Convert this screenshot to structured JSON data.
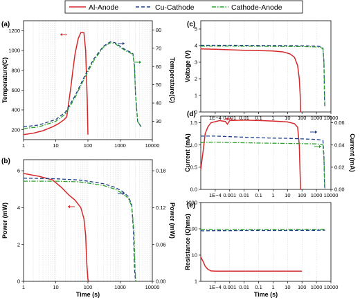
{
  "legend": {
    "entries": [
      {
        "label": "Al-Anode",
        "color": "#d62728",
        "dash": "solid"
      },
      {
        "label": "Cu-Cathode",
        "color": "#1f3c88",
        "dash": "dashed"
      },
      {
        "label": "Cathode-Anode",
        "color": "#2ca02c",
        "dash": "dashdot"
      }
    ]
  },
  "colors": {
    "al": "#d62728",
    "cu": "#1f3c88",
    "ca": "#2ca02c"
  },
  "chart_data": [
    {
      "id": "a",
      "type": "line",
      "panel_label": "(a)",
      "xscale": "log",
      "xlim": [
        1,
        10000
      ],
      "xticks": [
        1,
        10,
        100,
        1000,
        10000
      ],
      "xtick_labels": [
        "1",
        "10",
        "100",
        "1000",
        "10000"
      ],
      "xlabel": "",
      "ylabel": "Temperature(C)",
      "ylim": [
        100,
        1300
      ],
      "yticks": [
        200,
        400,
        600,
        800,
        1000,
        1200
      ],
      "ytick_labels": [
        "200",
        "400",
        "600",
        "800",
        "1000",
        "1200"
      ],
      "y2label": "Temperature(C)",
      "y2lim": [
        20,
        85
      ],
      "y2ticks": [
        30,
        40,
        50,
        60,
        70,
        80
      ],
      "y2tick_labels": [
        "30",
        "40",
        "50",
        "60",
        "70",
        "80"
      ],
      "grid": "vertical-minor",
      "legend": "top (shared)",
      "series": [
        {
          "name": "Al-Anode",
          "axis": "left",
          "x": [
            1,
            2,
            4,
            8,
            12,
            18,
            22,
            26,
            30,
            35,
            40,
            50,
            60,
            75,
            85,
            95,
            100
          ],
          "y": [
            150,
            165,
            190,
            230,
            260,
            300,
            330,
            500,
            650,
            830,
            970,
            1120,
            1180,
            1180,
            1000,
            500,
            150
          ]
        },
        {
          "name": "Cu-Cathode",
          "axis": "right",
          "x": [
            1,
            3,
            10,
            20,
            40,
            80,
            150,
            300,
            500,
            700,
            1000,
            1500,
            2000,
            2500,
            2800,
            3000,
            3500,
            4500
          ],
          "y": [
            27,
            28,
            31,
            35,
            44,
            55,
            64,
            71,
            73.5,
            73,
            71,
            69,
            68,
            67,
            60,
            45,
            30,
            27
          ]
        },
        {
          "name": "Cathode-Anode",
          "axis": "right",
          "x": [
            1,
            3,
            10,
            20,
            40,
            80,
            150,
            300,
            500,
            700,
            1000,
            1500,
            2000,
            2500,
            2800,
            3000,
            3500,
            4500
          ],
          "y": [
            26,
            27,
            30,
            34,
            43,
            54,
            63,
            70.5,
            73,
            72.5,
            70.5,
            68.5,
            67.5,
            66.5,
            60,
            45,
            30,
            27
          ]
        }
      ]
    },
    {
      "id": "b",
      "type": "line",
      "panel_label": "(b)",
      "xscale": "log",
      "xlim": [
        1,
        10000
      ],
      "xticks": [
        1,
        10,
        100,
        1000,
        10000
      ],
      "xtick_labels": [
        "1",
        "10",
        "100",
        "1000",
        "10000"
      ],
      "xlabel": "Time (s)",
      "ylabel": "Power (mW)",
      "ylim": [
        0,
        6.6
      ],
      "yticks": [
        0,
        2,
        4,
        6
      ],
      "ytick_labels": [
        "0",
        "2",
        "4",
        "6"
      ],
      "y2label": "Power (mW)",
      "y2lim": [
        0,
        0.198
      ],
      "y2ticks": [
        0,
        0.06,
        0.12,
        0.18
      ],
      "y2tick_labels": [
        "0.00",
        "0.06",
        "0.12",
        "0.18"
      ],
      "grid": "vertical-minor",
      "legend": "top (shared)",
      "series": [
        {
          "name": "Al-Anode",
          "axis": "left",
          "x": [
            1,
            3,
            8,
            15,
            25,
            40,
            60,
            75,
            85,
            92,
            100,
            105
          ],
          "y": [
            5.85,
            5.7,
            5.5,
            5.1,
            4.7,
            4.4,
            4.0,
            3.4,
            2.5,
            1.0,
            0.1,
            0.0
          ]
        },
        {
          "name": "Cu-Cathode",
          "axis": "right",
          "x": [
            1,
            10,
            50,
            100,
            300,
            700,
            1200,
            1800,
            2300,
            2600,
            2800,
            3000
          ],
          "y": [
            0.168,
            0.167,
            0.165,
            0.163,
            0.159,
            0.153,
            0.146,
            0.138,
            0.125,
            0.08,
            0.02,
            0.0
          ]
        },
        {
          "name": "Cathode-Anode",
          "axis": "right",
          "x": [
            1,
            10,
            50,
            100,
            300,
            700,
            1200,
            1800,
            2300,
            2700,
            2900,
            3100
          ],
          "y": [
            0.163,
            0.163,
            0.162,
            0.16,
            0.156,
            0.15,
            0.143,
            0.135,
            0.122,
            0.08,
            0.02,
            0.0
          ]
        }
      ]
    },
    {
      "id": "c",
      "type": "line",
      "panel_label": "(c)",
      "xscale": "log",
      "xlim": [
        1e-05,
        10000
      ],
      "xticks": [
        0.0001,
        0.001,
        0.01,
        0.1,
        1,
        10,
        100,
        1000,
        10000
      ],
      "xtick_labels": [
        "1E−4",
        "0.001",
        "0.01",
        "0.1",
        "1",
        "10",
        "100",
        "1000",
        "10000"
      ],
      "xlabel": "",
      "ylabel": "Voltage (V)",
      "ylim": [
        0,
        5.5
      ],
      "yticks": [
        0,
        1,
        2,
        3,
        4,
        5
      ],
      "ytick_labels": [
        "0",
        "1",
        "2",
        "3",
        "4",
        "5"
      ],
      "grid": "vertical-decades",
      "legend": "top (shared)",
      "series": [
        {
          "name": "Al-Anode",
          "axis": "left",
          "x": [
            1e-05,
            0.0001,
            0.001,
            0.01,
            0.1,
            1,
            5,
            15,
            30,
            50,
            65,
            75,
            80
          ],
          "y": [
            3.8,
            3.78,
            3.75,
            3.72,
            3.7,
            3.68,
            3.62,
            3.5,
            3.3,
            2.8,
            2.0,
            1.0,
            0.0
          ]
        },
        {
          "name": "Cu-Cathode",
          "axis": "left",
          "x": [
            1e-05,
            0.001,
            0.1,
            10,
            100,
            1000,
            2000,
            2800,
            3300,
            3600,
            3800
          ],
          "y": [
            4.02,
            4.02,
            4.01,
            4.0,
            3.99,
            3.97,
            3.94,
            3.85,
            3.0,
            0.8,
            0.3
          ]
        },
        {
          "name": "Cathode-Anode",
          "axis": "left",
          "x": [
            1e-05,
            0.001,
            0.1,
            10,
            100,
            1000,
            2000,
            2800,
            3300,
            3700,
            3900
          ],
          "y": [
            3.97,
            3.97,
            3.96,
            3.95,
            3.94,
            3.92,
            3.89,
            3.8,
            3.0,
            0.8,
            0.3
          ]
        }
      ]
    },
    {
      "id": "d",
      "type": "line",
      "panel_label": "(d)",
      "xscale": "log",
      "xlim": [
        1e-05,
        10000
      ],
      "xticks": [
        0.0001,
        0.001,
        0.01,
        0.1,
        1,
        10,
        100,
        1000,
        10000
      ],
      "xtick_labels": [
        "1E−4",
        "0.001",
        "0.01",
        "0.1",
        "1",
        "10",
        "100",
        "1000",
        "10000"
      ],
      "xlabel": "",
      "ylabel": "Current (mA)",
      "ylim": [
        0,
        1.65
      ],
      "yticks": [
        0,
        0.5,
        1.0,
        1.5
      ],
      "ytick_labels": [
        "0.0",
        "0.5",
        "1.0",
        "1.5"
      ],
      "y2label": "Current (mA)",
      "y2lim": [
        0,
        0.066
      ],
      "y2ticks": [
        0,
        0.02,
        0.04,
        0.06
      ],
      "y2tick_labels": [
        "0.00",
        "0.02",
        "0.04",
        "0.06"
      ],
      "grid": "vertical-decades",
      "legend": "top (shared)",
      "series": [
        {
          "name": "Al-Anode",
          "axis": "left",
          "x": [
            1e-05,
            1.5e-05,
            2e-05,
            3e-05,
            5e-05,
            0.0002,
            0.0005,
            0.0007,
            0.001,
            0.01,
            0.1,
            1,
            10,
            30,
            50,
            65,
            72,
            78,
            80
          ],
          "y": [
            0.45,
            0.9,
            1.25,
            1.4,
            1.5,
            1.55,
            1.53,
            1.47,
            1.55,
            1.56,
            1.55,
            1.54,
            1.52,
            1.48,
            1.4,
            1.0,
            0.5,
            0.1,
            0.0
          ]
        },
        {
          "name": "Cu-Cathode",
          "axis": "right",
          "x": [
            1e-05,
            3e-05,
            0.0001,
            0.001,
            0.01,
            0.1,
            1,
            10,
            100,
            1000,
            2000,
            2800,
            3300,
            3600,
            3800
          ],
          "y": [
            0.048,
            0.048,
            0.048,
            0.0475,
            0.047,
            0.0465,
            0.0462,
            0.046,
            0.0455,
            0.045,
            0.0445,
            0.044,
            0.03,
            0.005,
            0.0
          ]
        },
        {
          "name": "Cathode-Anode",
          "axis": "right",
          "x": [
            1e-05,
            3e-05,
            0.0001,
            0.001,
            0.01,
            0.1,
            1,
            10,
            100,
            1000,
            2000,
            2800,
            3300,
            3700,
            3900
          ],
          "y": [
            0.042,
            0.0425,
            0.0425,
            0.0422,
            0.042,
            0.0418,
            0.0416,
            0.0414,
            0.0412,
            0.041,
            0.0405,
            0.04,
            0.028,
            0.005,
            0.0
          ]
        }
      ]
    },
    {
      "id": "e",
      "type": "line",
      "panel_label": "(e)",
      "xscale": "log",
      "xlim": [
        1e-05,
        10000
      ],
      "xticks": [
        0.0001,
        0.001,
        0.01,
        0.1,
        1,
        10,
        100,
        1000,
        10000
      ],
      "xtick_labels": [
        "1E−4",
        "0.001",
        "0.01",
        "0.1",
        "1",
        "10",
        "100",
        "1000",
        "10000"
      ],
      "xlabel": "Time (s)",
      "ylabel": "Resistance (Ohms)",
      "yscale": "log",
      "ylim": [
        1,
        1000
      ],
      "yticks": [
        1,
        10,
        100,
        1000
      ],
      "ytick_labels": [
        "1",
        "10",
        "100",
        "1000"
      ],
      "grid": "vertical-decades",
      "legend": "top (shared)",
      "series": [
        {
          "name": "Al-Anode",
          "axis": "left",
          "x": [
            1e-05,
            1.5e-05,
            2e-05,
            3e-05,
            5e-05,
            0.0001,
            0.001,
            0.01,
            0.1,
            1,
            10,
            100
          ],
          "y": [
            8.5,
            5.5,
            3.8,
            2.9,
            2.5,
            2.45,
            2.45,
            2.45,
            2.45,
            2.45,
            2.45,
            2.45
          ]
        },
        {
          "name": "Cu-Cathode",
          "axis": "left",
          "x": [
            1e-05,
            0.0001,
            0.001,
            0.01,
            0.1,
            1,
            10,
            100,
            1000,
            4000
          ],
          "y": [
            84,
            85,
            85,
            86,
            86,
            86,
            86,
            87,
            87,
            88
          ]
        },
        {
          "name": "Cathode-Anode",
          "axis": "left",
          "x": [
            1e-05,
            0.0001,
            0.001,
            0.01,
            0.1,
            1,
            10,
            100,
            1000,
            4000
          ],
          "y": [
            96,
            96,
            95,
            95,
            95,
            95,
            95,
            95,
            96,
            96
          ]
        }
      ]
    }
  ]
}
